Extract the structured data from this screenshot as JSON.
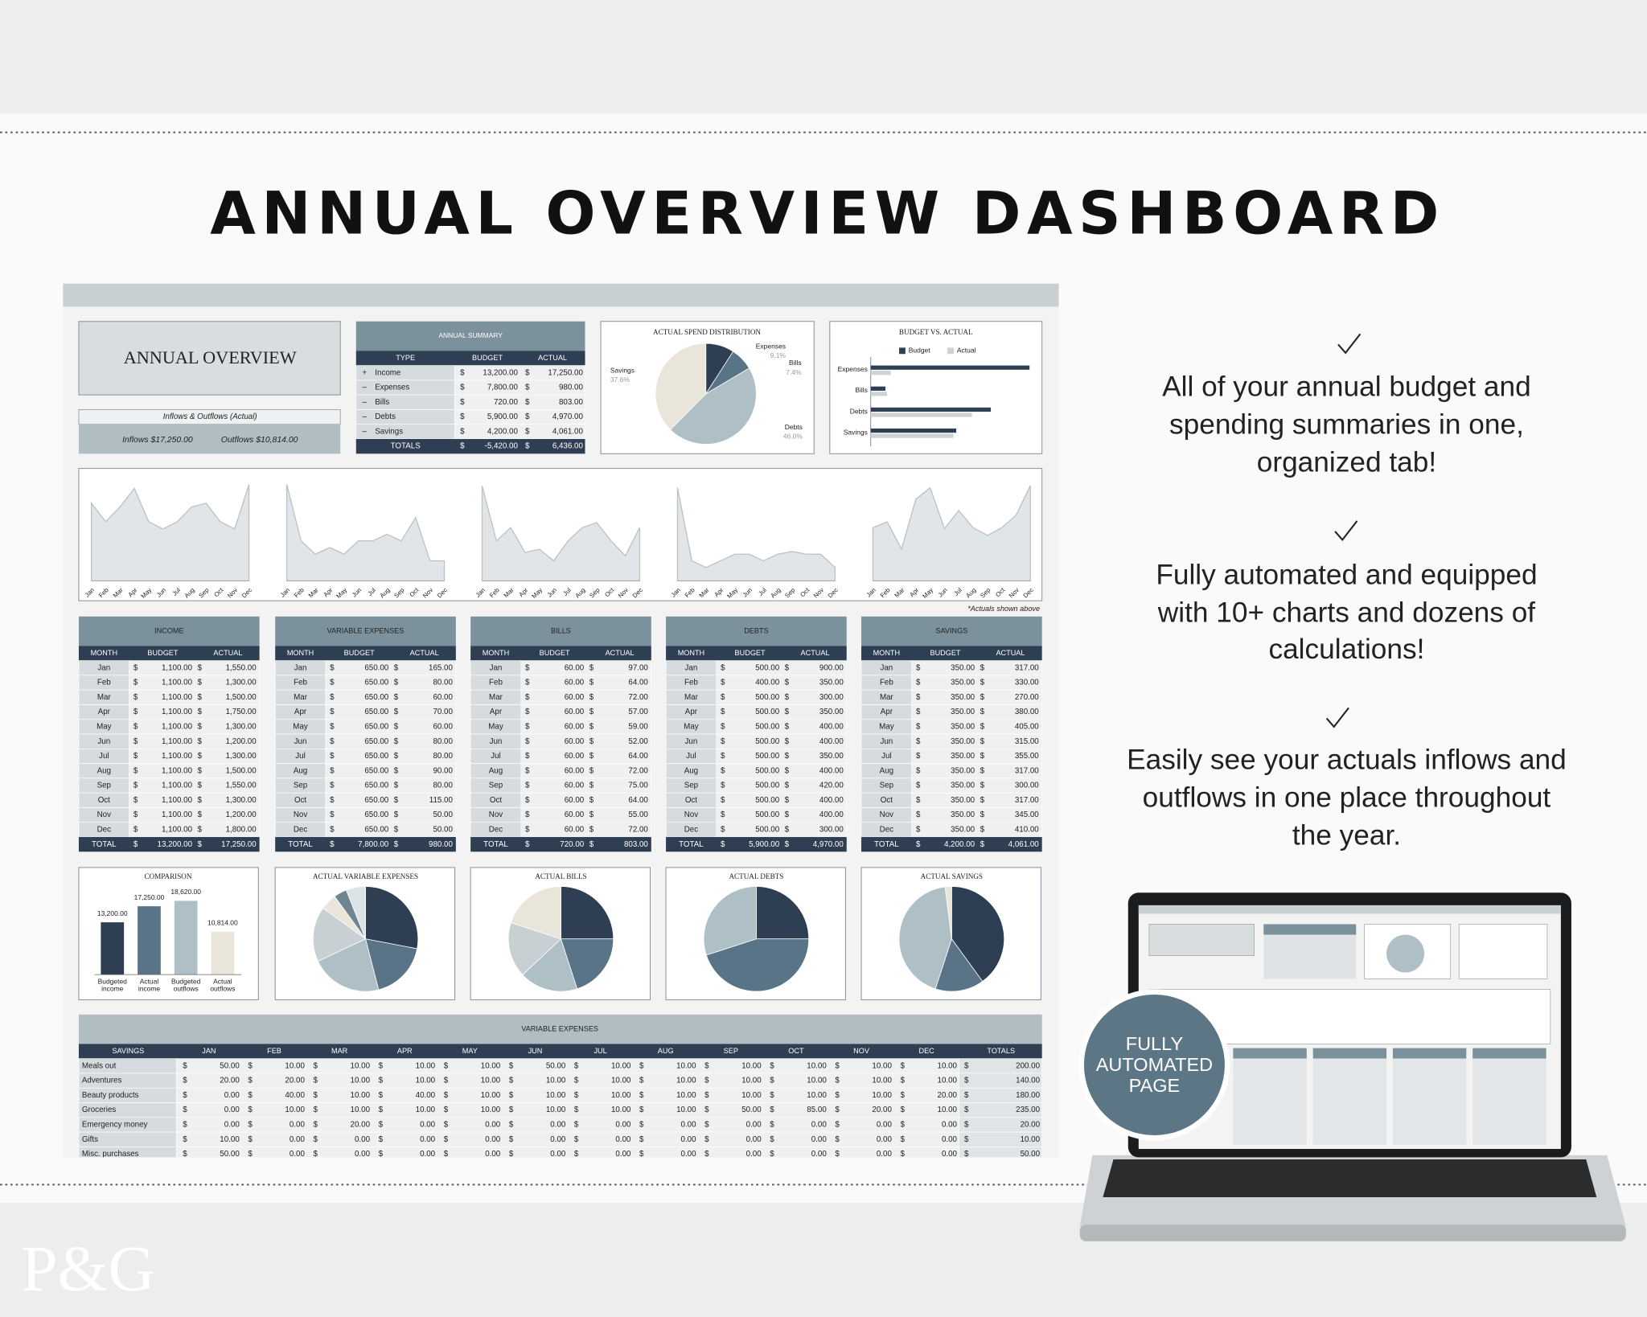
{
  "header": {
    "title": "ANNUAL OVERVIEW DASHBOARD"
  },
  "features": [
    {
      "lines": [
        "All of your annual budget and",
        "spending summaries in one,",
        "organized tab!"
      ]
    },
    {
      "lines": [
        "Fully automated and equipped",
        "with 10+ charts and dozens of",
        "calculations!"
      ]
    },
    {
      "lines": [
        "Easily see your actuals inflows and",
        "outflows in one place throughout",
        "the year."
      ]
    }
  ],
  "badge": {
    "lines": [
      "FULLY",
      "AUTOMATED",
      "PAGE"
    ]
  },
  "logo": "P&G",
  "sheet": {
    "title": "ANNUAL OVERVIEW",
    "currency": "$",
    "months": [
      "Jan",
      "Feb",
      "Mar",
      "Apr",
      "May",
      "Jun",
      "Jul",
      "Aug",
      "Sep",
      "Oct",
      "Nov",
      "Dec"
    ],
    "flows": {
      "caption": "Inflows & Outflows (Actual)",
      "inflows": "Inflows $17,250.00",
      "outflows": "Outflows $10,814.00"
    },
    "annual_summary": {
      "title": "ANNUAL SUMMARY",
      "columns": [
        "TYPE",
        "BUDGET",
        "ACTUAL"
      ],
      "rows": [
        {
          "sign": "+",
          "type": "Income",
          "budget": "13,200.00",
          "actual": "17,250.00"
        },
        {
          "sign": "–",
          "type": "Expenses",
          "budget": "7,800.00",
          "actual": "980.00"
        },
        {
          "sign": "–",
          "type": "Bills",
          "budget": "720.00",
          "actual": "803.00"
        },
        {
          "sign": "–",
          "type": "Debts",
          "budget": "5,900.00",
          "actual": "4,970.00"
        },
        {
          "sign": "–",
          "type": "Savings",
          "budget": "4,200.00",
          "actual": "4,061.00"
        }
      ],
      "total": {
        "type": "TOTALS",
        "budget": "-5,420.00",
        "actual": "6,436.00"
      }
    },
    "spend_distribution": {
      "type": "pie",
      "title": "ACTUAL SPEND DISTRIBUTION",
      "categories": [
        "Expenses",
        "Bills",
        "Debts",
        "Savings"
      ],
      "values": [
        9.1,
        7.4,
        46.0,
        37.6
      ],
      "value_labels": [
        "9.1%",
        "7.4%",
        "46.0%",
        "37.6%"
      ],
      "colors": [
        "#2e3f53",
        "#587486",
        "#aebfc5",
        "#e9e5da"
      ]
    },
    "budget_vs_actual": {
      "type": "bar",
      "title": "BUDGET VS. ACTUAL",
      "categories": [
        "Expenses",
        "Bills",
        "Debts",
        "Savings"
      ],
      "series": [
        {
          "name": "Budget",
          "color": "#2e3f53",
          "values": [
            7800,
            720,
            5900,
            4200
          ]
        },
        {
          "name": "Actual",
          "color": "#cdd2d5",
          "values": [
            980,
            803,
            4970,
            4061
          ]
        }
      ],
      "xlim": [
        0,
        8000
      ]
    },
    "trend_charts": [
      {
        "type": "area",
        "values": [
          1550,
          1300,
          1500,
          1750,
          1300,
          1200,
          1300,
          1500,
          1550,
          1300,
          1200,
          1800
        ],
        "ylim": [
          500,
          1850
        ]
      },
      {
        "type": "area",
        "values": [
          165,
          80,
          60,
          70,
          60,
          80,
          80,
          90,
          80,
          115,
          50,
          50
        ],
        "ylim": [
          20,
          170
        ]
      },
      {
        "type": "area",
        "values": [
          97,
          64,
          72,
          57,
          59,
          52,
          64,
          72,
          75,
          64,
          55,
          72
        ],
        "ylim": [
          40,
          100
        ]
      },
      {
        "type": "area",
        "values": [
          900,
          350,
          300,
          350,
          400,
          400,
          350,
          400,
          420,
          400,
          400,
          300
        ],
        "ylim": [
          200,
          950
        ]
      },
      {
        "type": "area",
        "values": [
          317,
          330,
          270,
          380,
          405,
          315,
          355,
          317,
          300,
          317,
          345,
          410
        ],
        "ylim": [
          200,
          420
        ]
      }
    ],
    "note": "*Actuals shown above",
    "table_headers": {
      "month": "MONTH",
      "budget": "BUDGET",
      "actual": "ACTUAL",
      "total": "TOTAL"
    },
    "monthly_tables": [
      {
        "title": "INCOME",
        "budget": [
          "1,100.00",
          "1,100.00",
          "1,100.00",
          "1,100.00",
          "1,100.00",
          "1,100.00",
          "1,100.00",
          "1,100.00",
          "1,100.00",
          "1,100.00",
          "1,100.00",
          "1,100.00"
        ],
        "actual": [
          "1,550.00",
          "1,300.00",
          "1,500.00",
          "1,750.00",
          "1,300.00",
          "1,200.00",
          "1,300.00",
          "1,500.00",
          "1,550.00",
          "1,300.00",
          "1,200.00",
          "1,800.00"
        ],
        "total_budget": "13,200.00",
        "total_actual": "17,250.00"
      },
      {
        "title": "VARIABLE EXPENSES",
        "budget": [
          "650.00",
          "650.00",
          "650.00",
          "650.00",
          "650.00",
          "650.00",
          "650.00",
          "650.00",
          "650.00",
          "650.00",
          "650.00",
          "650.00"
        ],
        "actual": [
          "165.00",
          "80.00",
          "60.00",
          "70.00",
          "60.00",
          "80.00",
          "80.00",
          "90.00",
          "80.00",
          "115.00",
          "50.00",
          "50.00"
        ],
        "total_budget": "7,800.00",
        "total_actual": "980.00"
      },
      {
        "title": "BILLS",
        "budget": [
          "60.00",
          "60.00",
          "60.00",
          "60.00",
          "60.00",
          "60.00",
          "60.00",
          "60.00",
          "60.00",
          "60.00",
          "60.00",
          "60.00"
        ],
        "actual": [
          "97.00",
          "64.00",
          "72.00",
          "57.00",
          "59.00",
          "52.00",
          "64.00",
          "72.00",
          "75.00",
          "64.00",
          "55.00",
          "72.00"
        ],
        "total_budget": "720.00",
        "total_actual": "803.00"
      },
      {
        "title": "DEBTS",
        "budget": [
          "500.00",
          "400.00",
          "500.00",
          "500.00",
          "500.00",
          "500.00",
          "500.00",
          "500.00",
          "500.00",
          "500.00",
          "500.00",
          "500.00"
        ],
        "actual": [
          "900.00",
          "350.00",
          "300.00",
          "350.00",
          "400.00",
          "400.00",
          "350.00",
          "400.00",
          "420.00",
          "400.00",
          "400.00",
          "300.00"
        ],
        "total_budget": "5,900.00",
        "total_actual": "4,970.00"
      },
      {
        "title": "SAVINGS",
        "budget": [
          "350.00",
          "350.00",
          "350.00",
          "350.00",
          "350.00",
          "350.00",
          "350.00",
          "350.00",
          "350.00",
          "350.00",
          "350.00",
          "350.00"
        ],
        "actual": [
          "317.00",
          "330.00",
          "270.00",
          "380.00",
          "405.00",
          "315.00",
          "355.00",
          "317.00",
          "300.00",
          "317.00",
          "345.00",
          "410.00"
        ],
        "total_budget": "4,200.00",
        "total_actual": "4,061.00"
      }
    ],
    "comparison": {
      "type": "bar",
      "title": "COMPARISON",
      "categories": [
        "Budgeted income",
        "Actual income",
        "Budgeted outflows",
        "Actual outflows"
      ],
      "values": [
        13200,
        17250,
        18620,
        10814
      ],
      "value_labels": [
        "13,200.00",
        "17,250.00",
        "18,620.00",
        "10,814.00"
      ],
      "colors": [
        "#2e3f53",
        "#587486",
        "#aebfc5",
        "#e9e5da"
      ],
      "ylim": [
        0,
        22000
      ]
    },
    "pies": [
      {
        "type": "pie",
        "title": "ACTUAL VARIABLE EXPENSES",
        "values": [
          28,
          18,
          22,
          17,
          5,
          4,
          6
        ],
        "colors": [
          "#2e3f53",
          "#587486",
          "#aebfc5",
          "#c9d0d3",
          "#e9e5da",
          "#6f8591",
          "#dde2e4"
        ]
      },
      {
        "type": "pie",
        "title": "ACTUAL BILLS",
        "values": [
          25,
          20,
          18,
          17,
          20
        ],
        "colors": [
          "#2e3f53",
          "#587486",
          "#aebfc5",
          "#c9d0d3",
          "#e9e5da"
        ]
      },
      {
        "type": "pie",
        "title": "ACTUAL DEBTS",
        "values": [
          25,
          45,
          30
        ],
        "colors": [
          "#2e3f53",
          "#587486",
          "#aebfc5"
        ]
      },
      {
        "type": "pie",
        "title": "ACTUAL SAVINGS",
        "values": [
          40,
          15,
          43,
          2
        ],
        "colors": [
          "#2e3f53",
          "#587486",
          "#aebfc5",
          "#e9e5da"
        ]
      }
    ],
    "variable_expenses": {
      "title": "VARIABLE EXPENSES",
      "first_column": "SAVINGS",
      "columns": [
        "JAN",
        "FEB",
        "MAR",
        "APR",
        "MAY",
        "JUN",
        "JUL",
        "AUG",
        "SEP",
        "OCT",
        "NOV",
        "DEC"
      ],
      "total_column": "TOTALS",
      "rows": [
        {
          "name": "Meals out",
          "values": [
            "50.00",
            "10.00",
            "10.00",
            "10.00",
            "10.00",
            "50.00",
            "10.00",
            "10.00",
            "10.00",
            "10.00",
            "10.00",
            "10.00"
          ],
          "total": "200.00"
        },
        {
          "name": "Adventures",
          "values": [
            "20.00",
            "20.00",
            "10.00",
            "10.00",
            "10.00",
            "10.00",
            "10.00",
            "10.00",
            "10.00",
            "10.00",
            "10.00",
            "10.00"
          ],
          "total": "140.00"
        },
        {
          "name": "Beauty products",
          "values": [
            "0.00",
            "40.00",
            "10.00",
            "40.00",
            "10.00",
            "10.00",
            "10.00",
            "10.00",
            "10.00",
            "10.00",
            "10.00",
            "20.00"
          ],
          "total": "180.00"
        },
        {
          "name": "Groceries",
          "values": [
            "0.00",
            "10.00",
            "10.00",
            "10.00",
            "10.00",
            "10.00",
            "10.00",
            "10.00",
            "50.00",
            "85.00",
            "20.00",
            "10.00"
          ],
          "total": "235.00"
        },
        {
          "name": "Emergency money",
          "values": [
            "0.00",
            "0.00",
            "20.00",
            "0.00",
            "0.00",
            "0.00",
            "0.00",
            "0.00",
            "0.00",
            "0.00",
            "0.00",
            "0.00"
          ],
          "total": "20.00"
        },
        {
          "name": "Gifts",
          "values": [
            "10.00",
            "0.00",
            "0.00",
            "0.00",
            "0.00",
            "0.00",
            "0.00",
            "0.00",
            "0.00",
            "0.00",
            "0.00",
            "0.00"
          ],
          "total": "10.00"
        },
        {
          "name": "Misc. purchases",
          "values": [
            "50.00",
            "0.00",
            "0.00",
            "0.00",
            "0.00",
            "0.00",
            "0.00",
            "0.00",
            "0.00",
            "0.00",
            "0.00",
            "0.00"
          ],
          "total": "50.00"
        }
      ]
    }
  }
}
